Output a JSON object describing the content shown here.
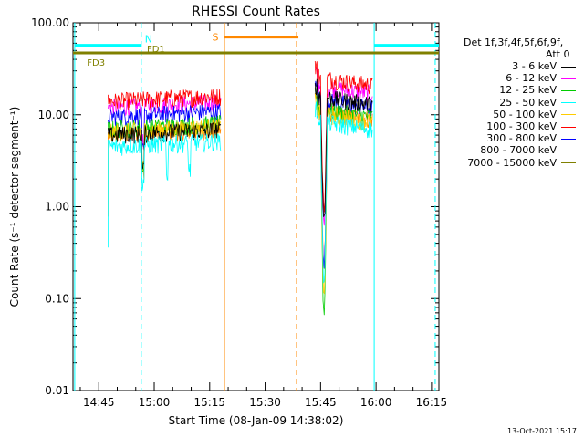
{
  "chart_data": {
    "type": "line",
    "title": "RHESSI Count Rates",
    "xlabel": "Start Time (08-Jan-09 14:38:02)",
    "ylabel": "Count Rate (s⁻¹ detector segment⁻¹)",
    "ylog": true,
    "ylim": [
      0.01,
      100
    ],
    "xlim_minutes": [
      38.03,
      137
    ],
    "xticks": [
      {
        "m": 45,
        "label": "14:45"
      },
      {
        "m": 60,
        "label": "15:00"
      },
      {
        "m": 75,
        "label": "15:15"
      },
      {
        "m": 90,
        "label": "15:30"
      },
      {
        "m": 105,
        "label": "15:45"
      },
      {
        "m": 120,
        "label": "16:00"
      },
      {
        "m": 135,
        "label": "16:15"
      }
    ],
    "yticks": [
      {
        "v": 0.01,
        "label": "0.01"
      },
      {
        "v": 0.1,
        "label": "0.10"
      },
      {
        "v": 1,
        "label": "1.00"
      },
      {
        "v": 10,
        "label": "10.00"
      },
      {
        "v": 100,
        "label": "100.00"
      }
    ],
    "legend": {
      "header1": "Det 1f,3f,4f,5f,6f,9f,",
      "header2": "Att 0",
      "position": "right"
    },
    "series": [
      {
        "name": "3 - 6 keV",
        "color": "#000000",
        "seg1": 6.0,
        "seg2": 13.0
      },
      {
        "name": "6 - 12 keV",
        "color": "#ff00ff",
        "seg1": 12.0,
        "seg2": 17.0
      },
      {
        "name": "12 - 25 keV",
        "color": "#00cc00",
        "seg1": 7.0,
        "seg2": 9.5
      },
      {
        "name": "25 - 50 keV",
        "color": "#00ffff",
        "seg1": 4.5,
        "seg2": 7.0
      },
      {
        "name": "50 - 100 keV",
        "color": "#ffcc00",
        "seg1": 6.5,
        "seg2": 8.5
      },
      {
        "name": "100 - 300 keV",
        "color": "#ff0000",
        "seg1": 14.0,
        "seg2": 21.0
      },
      {
        "name": "300 - 800 keV",
        "color": "#0000ff",
        "seg1": 9.5,
        "seg2": 12.0
      },
      {
        "name": "800 - 7000 keV",
        "color": "#ff8800",
        "seg1": 6.0,
        "seg2": 9.0
      },
      {
        "name": "7000 - 15000 keV",
        "color": "#808000",
        "seg1": 47,
        "seg2": 47
      }
    ],
    "segments_minutes": [
      [
        47.5,
        78
      ],
      [
        103.5,
        119
      ]
    ],
    "annotations": {
      "N": {
        "label": "N",
        "color": "#00ffff",
        "xm": 56.5,
        "y": 57,
        "from_m": 38.5,
        "to_m": 56.5
      },
      "N2": {
        "from_m": 119.5,
        "to_m": 137,
        "y": 57,
        "color": "#00ffff"
      },
      "S": {
        "label": "S",
        "color": "#ff8800",
        "xm": 79,
        "y": 70,
        "from_m": 79,
        "to_m": 99
      },
      "FD1": {
        "label": "FD1",
        "color": "#808000",
        "xm": 57.5
      },
      "FD3": {
        "label": "FD3",
        "color": "#808000",
        "xm": 44
      }
    },
    "vlines": [
      {
        "m": 38.5,
        "color": "#00ffff",
        "dash": false
      },
      {
        "m": 56.5,
        "color": "#00ffff",
        "dash": true
      },
      {
        "m": 79,
        "color": "#ff8800",
        "dash": false
      },
      {
        "m": 98.5,
        "color": "#ff8800",
        "dash": true
      },
      {
        "m": 119.5,
        "color": "#00ffff",
        "dash": false
      },
      {
        "m": 136,
        "color": "#00ffff",
        "dash": true
      }
    ],
    "footer_stamp": "13-Oct-2021 15:17"
  }
}
